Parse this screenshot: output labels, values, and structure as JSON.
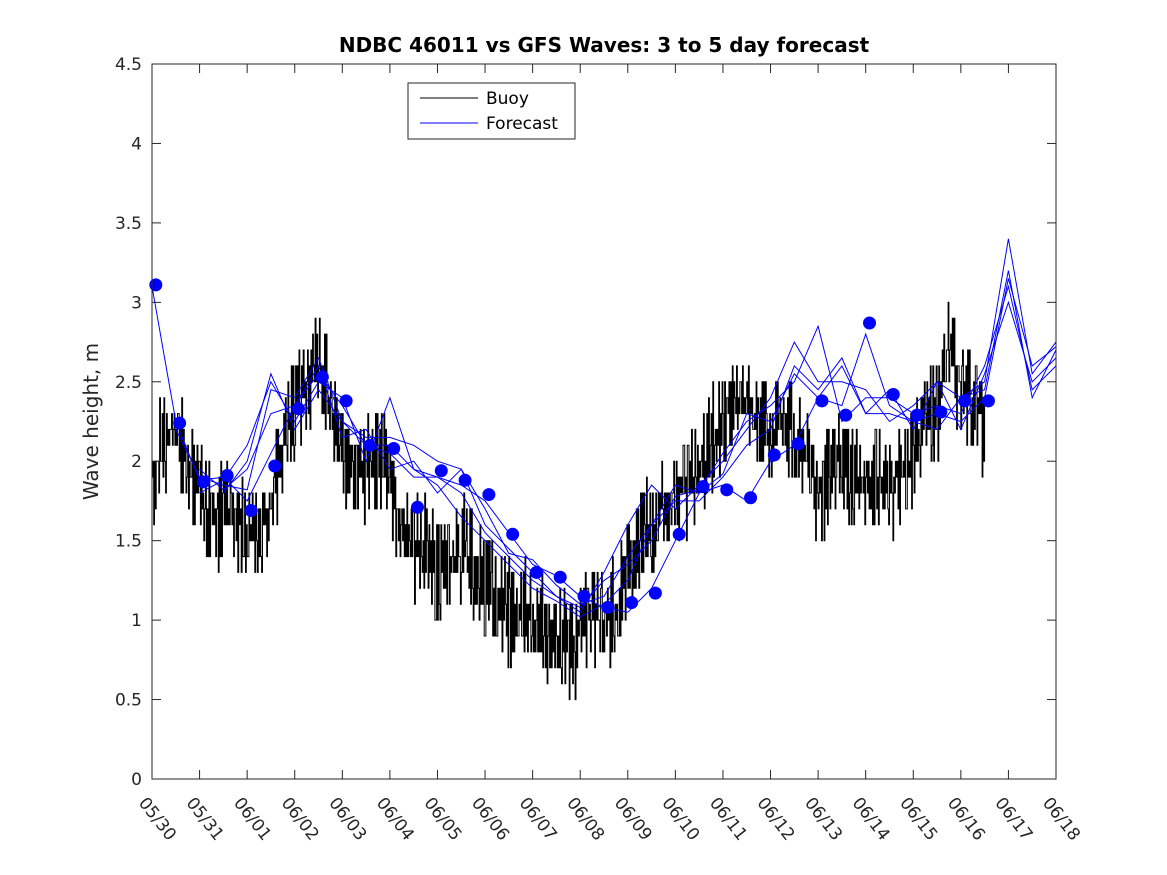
{
  "chart_data": {
    "type": "line",
    "title": "NDBC 46011 vs GFS Waves: 3 to 5 day forecast",
    "xlabel": "",
    "ylabel": "Wave height, m",
    "xlim": [
      0,
      19
    ],
    "ylim": [
      0,
      4.5
    ],
    "x_ticks": [
      "05/30",
      "05/31",
      "06/01",
      "06/02",
      "06/03",
      "06/04",
      "06/05",
      "06/06",
      "06/07",
      "06/08",
      "06/09",
      "06/10",
      "06/11",
      "06/12",
      "06/13",
      "06/14",
      "06/15",
      "06/16",
      "06/17",
      "06/18"
    ],
    "y_ticks": [
      "0",
      "0.5",
      "1",
      "1.5",
      "2",
      "2.5",
      "3",
      "3.5",
      "4",
      "4.5"
    ],
    "grid": false,
    "legend_position": "top-left",
    "colors": {
      "buoy": "#000000",
      "forecast": "#0000ff",
      "markers": "#0000ff"
    },
    "legend": [
      {
        "label": "Buoy",
        "color": "#000000"
      },
      {
        "label": "Forecast",
        "color": "#0000ff"
      }
    ],
    "series": [
      {
        "name": "Buoy",
        "x": [
          0.0,
          0.25,
          0.5,
          0.75,
          1.0,
          1.25,
          1.5,
          1.75,
          2.0,
          2.25,
          2.5,
          2.75,
          3.0,
          3.25,
          3.5,
          3.75,
          4.0,
          4.25,
          4.5,
          4.75,
          5.0,
          5.25,
          5.5,
          5.75,
          6.0,
          6.25,
          6.5,
          6.75,
          7.0,
          7.25,
          7.5,
          7.75,
          8.0,
          8.25,
          8.5,
          8.75,
          9.0,
          9.25,
          9.5,
          9.75,
          10.0,
          10.25,
          10.5,
          10.75,
          11.0,
          11.25,
          11.5,
          11.75,
          12.0,
          12.25,
          12.5,
          12.75,
          13.0,
          13.25,
          13.5,
          13.75,
          14.0,
          14.25,
          14.5,
          14.75,
          15.0,
          15.25,
          15.5,
          15.75,
          16.0,
          16.25,
          16.5,
          16.75,
          17.0,
          17.25,
          17.5
        ],
        "y": [
          2.05,
          2.3,
          2.4,
          2.1,
          2.0,
          1.8,
          1.85,
          1.8,
          1.75,
          1.7,
          1.9,
          2.3,
          2.5,
          2.7,
          2.8,
          2.5,
          2.2,
          2.1,
          2.1,
          2.2,
          2.0,
          1.7,
          1.6,
          1.7,
          1.5,
          1.5,
          1.6,
          1.55,
          1.4,
          1.3,
          1.2,
          1.25,
          1.15,
          1.1,
          1.05,
          1.0,
          1.05,
          1.2,
          1.15,
          1.2,
          1.5,
          1.7,
          1.7,
          1.9,
          1.95,
          2.0,
          2.1,
          2.3,
          2.4,
          2.5,
          2.55,
          2.4,
          2.3,
          2.45,
          2.3,
          2.2,
          2.0,
          2.1,
          2.2,
          2.05,
          2.0,
          2.05,
          2.0,
          2.1,
          2.2,
          2.4,
          2.5,
          2.9,
          2.6,
          2.5,
          2.4
        ]
      },
      {
        "name": "Forecast",
        "x": [
          0,
          0.5,
          1,
          1.5,
          2,
          2.5,
          3,
          3.5,
          4,
          4.5,
          5,
          5.5,
          6,
          6.5,
          7,
          7.5,
          8,
          8.5,
          9,
          9.5,
          10,
          10.5,
          11,
          11.5,
          12,
          12.5,
          13,
          13.5,
          14,
          14.5,
          15,
          15.5,
          16,
          16.5,
          17,
          17.5,
          18,
          18.5,
          19
        ],
        "y": [
          3.1,
          2.25,
          1.88,
          1.9,
          1.75,
          2.05,
          2.35,
          2.55,
          2.35,
          2.1,
          2.05,
          1.9,
          1.9,
          1.85,
          1.75,
          1.55,
          1.35,
          1.28,
          1.15,
          1.08,
          1.05,
          1.2,
          1.5,
          1.8,
          1.85,
          1.75,
          2.0,
          2.1,
          2.4,
          2.35,
          2.8,
          2.35,
          2.25,
          2.3,
          2.25,
          2.4,
          3.15,
          2.6,
          2.72
        ]
      },
      {
        "name": "",
        "x": [
          0.5,
          1,
          1.5,
          2,
          2.5,
          3,
          3.5,
          4,
          4.5,
          5,
          5.5,
          6,
          6.5,
          7,
          7.5,
          8,
          8.5,
          9,
          9.5,
          10,
          10.5,
          11,
          11.5,
          12,
          12.5,
          13,
          13.5,
          14,
          14.5,
          15,
          15.5,
          16,
          16.5,
          17,
          17.5,
          18,
          18.5,
          19
        ],
        "y": [
          2.2,
          1.9,
          1.85,
          1.82,
          2.45,
          2.4,
          2.65,
          2.25,
          2.15,
          2.15,
          2.1,
          2.0,
          1.95,
          1.7,
          1.42,
          1.38,
          1.22,
          1.1,
          1.15,
          1.4,
          1.6,
          1.75,
          1.75,
          1.9,
          2.1,
          2.2,
          2.6,
          2.45,
          2.65,
          2.3,
          2.45,
          2.2,
          2.5,
          2.4,
          2.5,
          3.4,
          2.55,
          2.75
        ]
      },
      {
        "name": "",
        "x": [
          1,
          1.5,
          2,
          2.5,
          3,
          3.5,
          4,
          4.5,
          5,
          5.5,
          6,
          6.5,
          7,
          7.5,
          8,
          8.5,
          9,
          9.5,
          10,
          10.5,
          11,
          11.5,
          12,
          12.5,
          13,
          13.5,
          14,
          14.5,
          15,
          15.5,
          16,
          16.5,
          17,
          17.5,
          18,
          18.5,
          19
        ],
        "y": [
          1.95,
          1.82,
          1.95,
          2.3,
          2.35,
          2.6,
          2.15,
          2.2,
          1.95,
          2.0,
          1.8,
          1.95,
          1.6,
          1.45,
          1.3,
          1.15,
          1.05,
          1.3,
          1.6,
          1.85,
          1.7,
          1.85,
          2.0,
          2.2,
          2.4,
          2.75,
          2.5,
          2.5,
          2.45,
          2.25,
          2.35,
          2.5,
          2.2,
          2.55,
          3.0,
          2.5,
          2.65
        ]
      },
      {
        "name": "",
        "x": [
          1,
          1.5,
          2,
          2.5,
          3,
          3.5,
          4,
          4.5,
          5,
          5.5,
          6,
          6.5,
          7,
          7.5,
          8,
          8.5,
          9,
          9.5,
          10,
          10.5,
          11,
          11.5,
          12,
          12.5,
          13,
          13.5,
          14,
          14.5,
          15,
          15.5,
          16,
          16.5,
          17,
          17.5,
          18,
          18.5,
          19
        ],
        "y": [
          1.8,
          1.88,
          2.1,
          2.5,
          2.25,
          2.5,
          2.4,
          2.0,
          2.4,
          1.95,
          1.9,
          1.8,
          1.55,
          1.4,
          1.25,
          1.15,
          1.08,
          1.25,
          1.35,
          1.5,
          1.78,
          1.82,
          2.05,
          2.25,
          2.35,
          2.5,
          2.85,
          2.25,
          2.4,
          2.4,
          2.3,
          2.35,
          2.3,
          2.6,
          3.1,
          2.45,
          2.6
        ]
      },
      {
        "name": "",
        "x": [
          1.5,
          2,
          2.5,
          3,
          3.5,
          4,
          4.5,
          5,
          5.5,
          6,
          6.5,
          7,
          7.5,
          8,
          8.5,
          9,
          9.5,
          10,
          10.5,
          11,
          11.5,
          12,
          12.5,
          13,
          13.5,
          14,
          14.5,
          15,
          15.5,
          16,
          16.5,
          17,
          17.5,
          18,
          18.5,
          19
        ],
        "y": [
          1.8,
          2.0,
          2.55,
          2.2,
          2.45,
          2.25,
          2.1,
          2.1,
          1.95,
          1.85,
          1.65,
          1.5,
          1.35,
          1.2,
          1.12,
          1.02,
          1.1,
          1.25,
          1.6,
          1.85,
          1.8,
          1.92,
          2.3,
          2.25,
          2.55,
          2.4,
          2.6,
          2.3,
          2.3,
          2.25,
          2.2,
          2.4,
          2.45,
          3.2,
          2.4,
          2.7
        ]
      }
    ],
    "markers": {
      "x": [
        0.08,
        0.58,
        1.08,
        1.58,
        2.08,
        2.58,
        3.08,
        3.58,
        4.08,
        4.58,
        5.08,
        5.58,
        6.08,
        6.58,
        7.08,
        7.58,
        8.08,
        8.58,
        9.08,
        9.58,
        10.08,
        10.58,
        11.08,
        11.58,
        12.08,
        12.58,
        13.08,
        13.58,
        14.08,
        14.58,
        15.08,
        15.58,
        16.08,
        16.58,
        17.08,
        17.58
      ],
      "y": [
        3.11,
        2.24,
        1.87,
        1.91,
        1.69,
        1.97,
        2.33,
        2.53,
        2.38,
        2.1,
        2.08,
        1.71,
        1.94,
        1.88,
        1.79,
        1.54,
        1.3,
        1.27,
        1.15,
        1.08,
        1.11,
        1.17,
        1.54,
        1.84,
        1.82,
        1.77,
        2.04,
        2.11,
        2.38,
        2.29,
        2.87,
        2.42,
        2.29,
        2.31,
        2.38,
        2.38
      ]
    }
  }
}
